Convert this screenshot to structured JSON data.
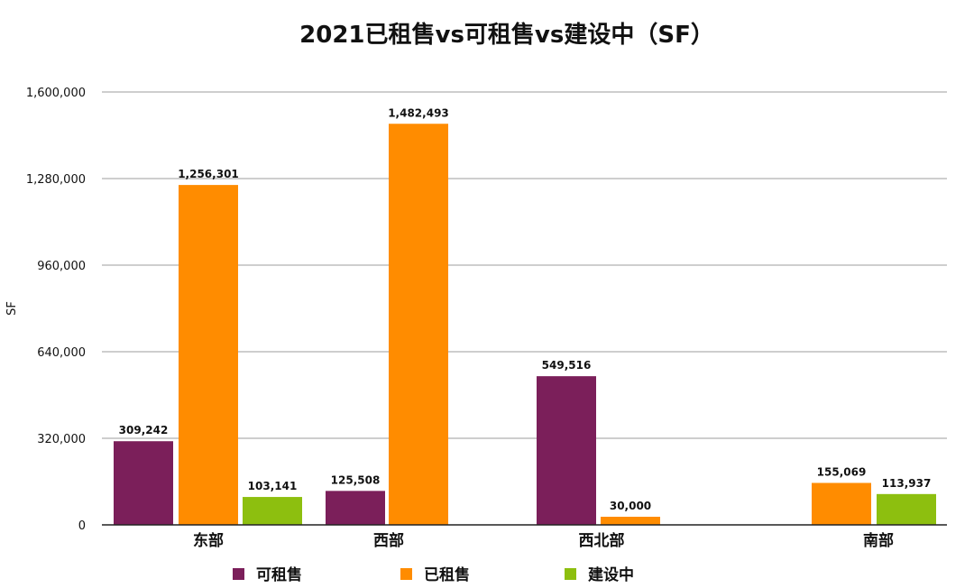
{
  "chart_data": {
    "type": "bar",
    "title": "2021已租售vs可租售vs建设中（SF）",
    "ylabel": "SF",
    "xlabel": "",
    "ylim": [
      0,
      1600000
    ],
    "yticks": [
      0,
      320000,
      640000,
      960000,
      1280000,
      1600000
    ],
    "ytick_labels": [
      "0",
      "320,000",
      "640,000",
      "960,000",
      "1,280,000",
      "1,600,000"
    ],
    "categories": [
      "东部",
      "西部",
      "西北部",
      "南部"
    ],
    "series": [
      {
        "name": "可租售",
        "color": "#7b1f5a",
        "values": [
          309242,
          125508,
          549516,
          null
        ],
        "labels": [
          "309,242",
          "125,508",
          "549,516",
          ""
        ]
      },
      {
        "name": "已租售",
        "color": "#ff8c00",
        "values": [
          1256301,
          1482493,
          30000,
          155069
        ],
        "labels": [
          "1,256,301",
          "1,482,493",
          "30,000",
          "155,069"
        ]
      },
      {
        "name": "建设中",
        "color": "#8dbf0f",
        "values": [
          103141,
          null,
          null,
          113937
        ],
        "labels": [
          "103,141",
          "",
          "",
          "113,937"
        ]
      }
    ],
    "grid": true,
    "legend": "bottom"
  }
}
